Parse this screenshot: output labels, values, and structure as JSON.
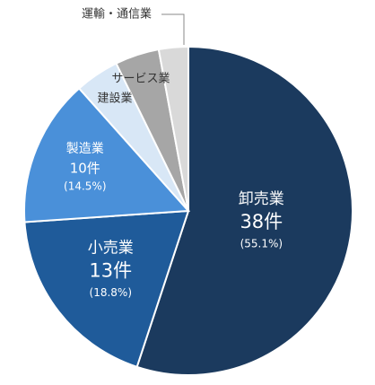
{
  "chart_data": {
    "type": "pie",
    "categories": [
      "卸売業",
      "小売業",
      "製造業",
      "建設業",
      "サービス業",
      "運輸・通信業"
    ],
    "values": [
      38,
      13,
      10,
      3,
      3,
      2
    ],
    "value_labels": [
      "38件",
      "13件",
      "10件",
      null,
      null,
      null
    ],
    "percent_labels": [
      "(55.1%)",
      "(18.8%)",
      "(14.5%)",
      null,
      null,
      null
    ],
    "colors": [
      "#1b3a5e",
      "#1f5b9a",
      "#4a90d9",
      "#d8e7f6",
      "#a6a6a6",
      "#d9d9d9"
    ]
  }
}
